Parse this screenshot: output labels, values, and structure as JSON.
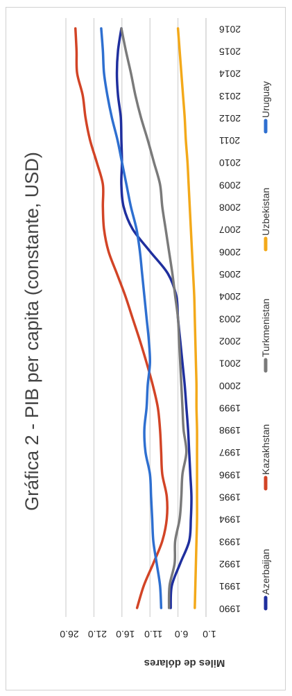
{
  "chart_data": {
    "type": "line",
    "title": "Gráfica 2 - PIB per capita (constante, USD)",
    "xlabel": "",
    "ylabel": "Miles de dólares",
    "ylim": [
      1.0,
      26.0
    ],
    "yticks": [
      "1.0",
      "6.0",
      "11.0",
      "16.0",
      "21.0",
      "26.0"
    ],
    "ytick_values": [
      1,
      6,
      11,
      16,
      21,
      26
    ],
    "x": [
      1990,
      1991,
      1992,
      1993,
      1994,
      1995,
      1996,
      1997,
      1998,
      1999,
      2000,
      2001,
      2002,
      2003,
      2004,
      2005,
      2006,
      2007,
      2008,
      2009,
      2010,
      2011,
      2012,
      2013,
      2014,
      2015,
      2016
    ],
    "grid": true,
    "legend_position": "left",
    "series": [
      {
        "name": "Azerbaijan",
        "color": "#1f2f9e",
        "values": [
          7.3,
          7.1,
          5.6,
          4.0,
          3.7,
          3.6,
          3.8,
          4.0,
          4.2,
          4.5,
          4.8,
          5.2,
          5.6,
          6.0,
          6.3,
          7.8,
          11.0,
          14.1,
          15.7,
          16.1,
          16.0,
          16.1,
          16.2,
          16.7,
          16.9,
          16.7,
          16.1
        ]
      },
      {
        "name": "Kazakhstan",
        "color": "#d24426",
        "values": [
          13.3,
          12.1,
          10.4,
          8.8,
          8.0,
          8.0,
          8.8,
          9.0,
          9.2,
          9.6,
          10.5,
          11.6,
          12.8,
          14.1,
          15.4,
          16.9,
          18.4,
          19.2,
          19.4,
          19.4,
          20.5,
          21.7,
          22.5,
          23.0,
          24.0,
          24.1,
          24.3
        ]
      },
      {
        "name": "Turkmenistan",
        "color": "#7a7a7a",
        "values": [
          7.6,
          7.5,
          6.6,
          6.5,
          5.7,
          5.4,
          5.2,
          4.5,
          5.0,
          5.2,
          5.4,
          5.6,
          5.8,
          6.0,
          6.5,
          7.0,
          7.6,
          8.2,
          8.8,
          9.2,
          10.3,
          11.4,
          12.6,
          13.6,
          14.4,
          15.3,
          16.1
        ]
      },
      {
        "name": "Uzbekistan",
        "color": "#f3a91a",
        "values": [
          3.0,
          2.9,
          2.8,
          2.7,
          2.6,
          2.6,
          2.6,
          2.6,
          2.6,
          2.7,
          2.7,
          2.8,
          2.9,
          3.0,
          3.1,
          3.3,
          3.5,
          3.7,
          3.9,
          4.1,
          4.3,
          4.6,
          4.8,
          5.1,
          5.4,
          5.7,
          6.0
        ]
      },
      {
        "name": "Uruguay",
        "color": "#2e6fd0",
        "values": [
          9.0,
          9.2,
          9.8,
          10.4,
          10.6,
          10.8,
          11.0,
          11.8,
          12.0,
          11.6,
          11.4,
          11.0,
          11.2,
          11.6,
          12.0,
          12.4,
          12.8,
          13.4,
          14.4,
          15.2,
          16.0,
          16.8,
          17.8,
          18.6,
          19.2,
          19.4,
          19.7
        ]
      }
    ]
  }
}
